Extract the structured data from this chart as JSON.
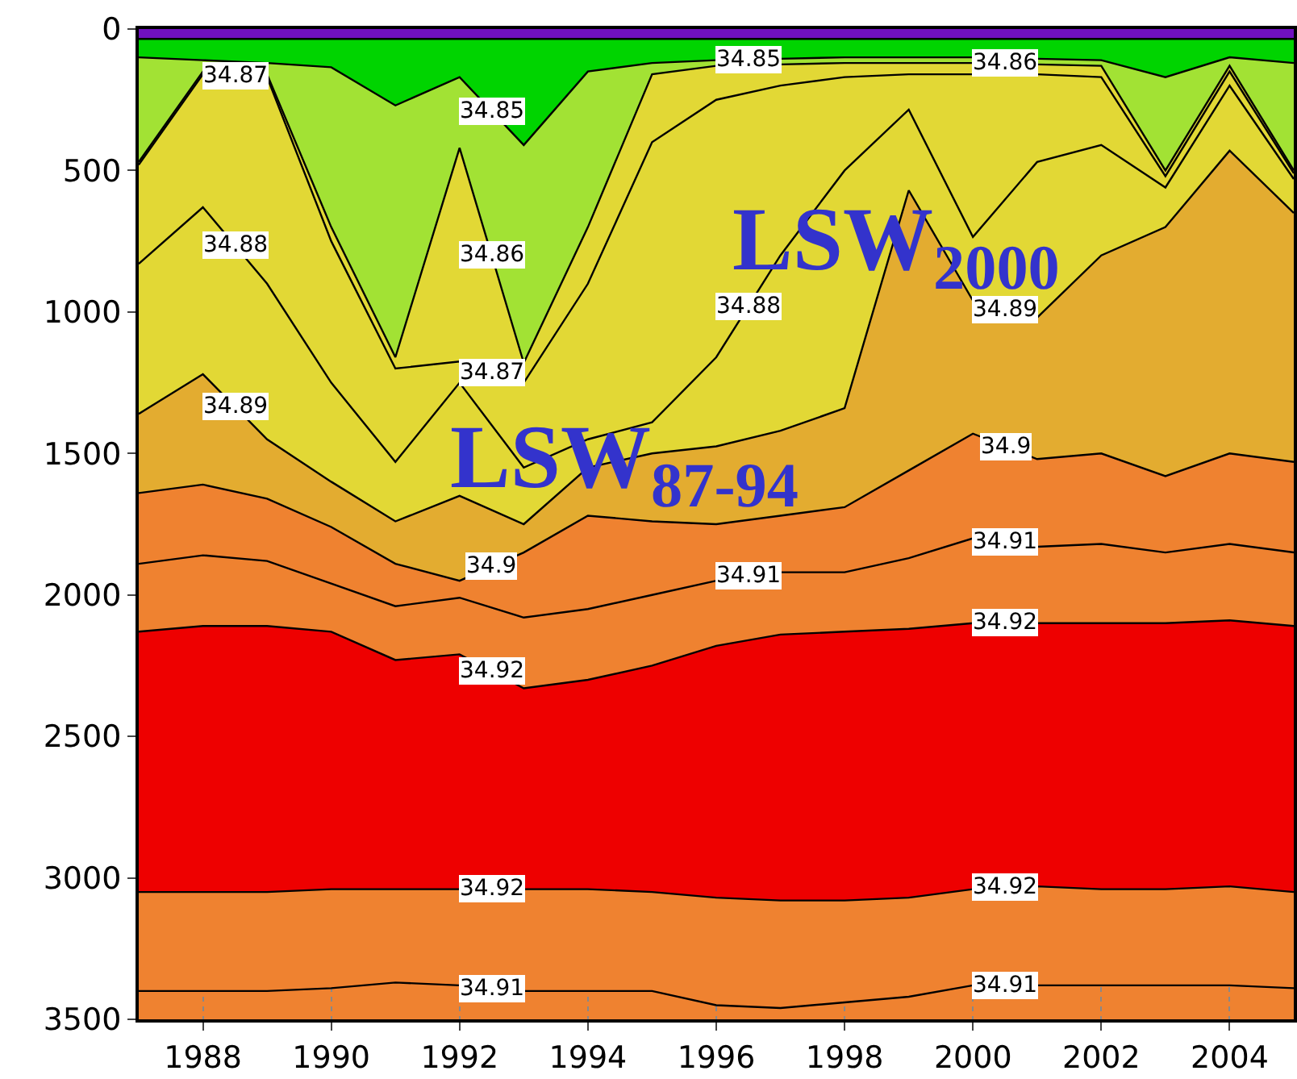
{
  "chart_data": {
    "type": "area",
    "x": [
      1987,
      1988,
      1989,
      1990,
      1991,
      1992,
      1993,
      1994,
      1995,
      1996,
      1997,
      1998,
      1999,
      2000,
      2001,
      2002,
      2003,
      2004,
      2005
    ],
    "series": [
      {
        "color": "#7010c0",
        "values": [
          35,
          35,
          35,
          35,
          35,
          35,
          35,
          35,
          35,
          35,
          35,
          35,
          35,
          35,
          35,
          35,
          35,
          35,
          35
        ]
      },
      {
        "name": "34.85",
        "color": "#00d400",
        "values": [
          100,
          110,
          120,
          135,
          270,
          170,
          410,
          150,
          120,
          110,
          105,
          100,
          100,
          100,
          105,
          110,
          170,
          100,
          120
        ]
      },
      {
        "name": "34.86",
        "color": "#a2e234",
        "values": [
          470,
          150,
          160,
          700,
          1160,
          420,
          1180,
          700,
          160,
          130,
          125,
          120,
          120,
          120,
          125,
          130,
          500,
          130,
          500
        ]
      },
      {
        "name": "34.87",
        "color": "#e2d835",
        "values": [
          480,
          160,
          170,
          750,
          1200,
          1175,
          1250,
          900,
          400,
          250,
          200,
          170,
          160,
          160,
          160,
          170,
          520,
          150,
          510
        ]
      },
      {
        "name": "34.88",
        "color": "#e2d835",
        "values": [
          830,
          630,
          900,
          1250,
          1530,
          1250,
          1550,
          1450,
          1390,
          1160,
          800,
          500,
          285,
          735,
          470,
          410,
          560,
          200,
          530
        ]
      },
      {
        "name": "34.89",
        "color": "#e2d835",
        "values": [
          1360,
          1220,
          1450,
          1600,
          1740,
          1650,
          1750,
          1550,
          1500,
          1475,
          1420,
          1340,
          570,
          960,
          1020,
          800,
          700,
          430,
          650
        ]
      },
      {
        "name": "34.9",
        "color": "#e3ac30",
        "values": [
          1640,
          1610,
          1660,
          1760,
          1890,
          1950,
          1850,
          1720,
          1740,
          1750,
          1720,
          1690,
          1560,
          1430,
          1520,
          1500,
          1580,
          1500,
          1530
        ]
      },
      {
        "name": "34.91",
        "color": "#ef8230",
        "values": [
          1890,
          1860,
          1880,
          1960,
          2040,
          2010,
          2080,
          2050,
          2000,
          1950,
          1920,
          1920,
          1870,
          1800,
          1830,
          1820,
          1850,
          1820,
          1850
        ]
      },
      {
        "name": "34.92",
        "color": "#ef8230",
        "values": [
          2130,
          2110,
          2110,
          2130,
          2230,
          2210,
          2330,
          2300,
          2250,
          2180,
          2140,
          2130,
          2120,
          2100,
          2100,
          2100,
          2100,
          2090,
          2110
        ]
      },
      {
        "name": "34.92",
        "color": "#ee0000",
        "values": [
          3050,
          3050,
          3050,
          3040,
          3040,
          3040,
          3040,
          3040,
          3050,
          3070,
          3080,
          3080,
          3070,
          3040,
          3030,
          3040,
          3040,
          3030,
          3050
        ]
      },
      {
        "name": "34.91",
        "color": "#ef8230",
        "values": [
          3400,
          3400,
          3400,
          3390,
          3370,
          3380,
          3400,
          3400,
          3400,
          3450,
          3460,
          3440,
          3420,
          3380,
          3380,
          3380,
          3380,
          3380,
          3390
        ]
      }
    ],
    "xlim": [
      1987,
      2005
    ],
    "xticks": [
      1988,
      1990,
      1992,
      1994,
      1996,
      1998,
      2000,
      2002,
      2004
    ],
    "ylim": [
      3500,
      0
    ],
    "yticks": [
      0,
      500,
      1000,
      1500,
      2000,
      2500,
      3000,
      3500
    ],
    "grid": true,
    "legend": false,
    "bands": [
      {
        "axis": "y",
        "from": 3500,
        "to": 3370,
        "color": "#ef8230"
      }
    ],
    "annotations": [
      "LSW$_{87-94}$",
      "LSW$_{2000}$"
    ]
  }
}
